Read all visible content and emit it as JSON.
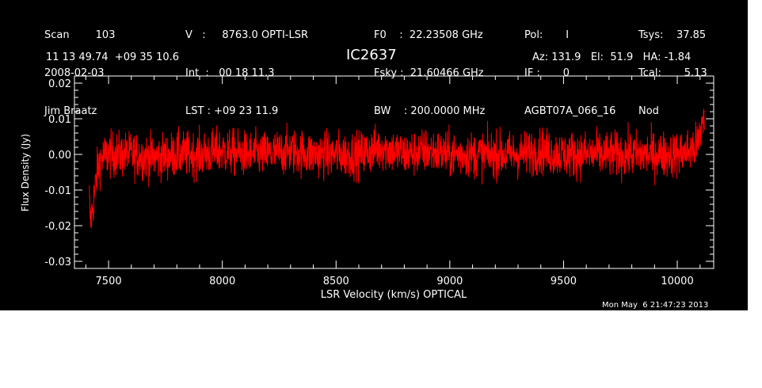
{
  "header": {
    "col1": [
      "Scan        103",
      "2008-02-03",
      "Jim Braatz"
    ],
    "col2": [
      "V   :     8763.0 OPTI-LSR",
      "Int  :   00 18 11.3",
      "LST : +09 23 11.9"
    ],
    "col3": [
      "F0    :  22.23508 GHz",
      "Fsky :  21.60466 GHz",
      "BW    : 200.0000 MHz"
    ],
    "col4": [
      "Pol:       I",
      "IF :       0",
      "AGBT07A_066_16"
    ],
    "col5": [
      "Tsys:    37.85",
      "Tcal:       5.13",
      "Nod"
    ]
  },
  "coords": "11 13 49.74  +09 35 10.6",
  "azel": "Az: 131.9   El:  51.9   HA: -1.84",
  "timestamp": "Mon May  6 21:47:23 2013",
  "chart_data": {
    "type": "line",
    "title": "IC2637",
    "xlabel": "LSR Velocity (km/s) OPTICAL",
    "ylabel": "Flux Density (Jy)",
    "xlim": [
      7350,
      10160
    ],
    "ylim": [
      -0.032,
      0.022
    ],
    "xticks": [
      7500,
      8000,
      8500,
      9000,
      9500,
      10000
    ],
    "yticks": [
      -0.03,
      -0.02,
      -0.01,
      0.0,
      0.01,
      0.02
    ],
    "ytick_labels": [
      "-0.03",
      "-0.02",
      "-0.01",
      "0.00",
      "0.01",
      "0.02"
    ],
    "series": [
      {
        "color": "#ff0000",
        "x": [
          7415,
          7420,
          7430,
          7440,
          7450,
          7460,
          7470,
          7500,
          7600,
          7700,
          7800,
          7900,
          8000,
          8100,
          8200,
          8300,
          8400,
          8500,
          8600,
          8700,
          8800,
          8900,
          9000,
          9100,
          9200,
          9300,
          9400,
          9500,
          9600,
          9700,
          9800,
          9900,
          10000,
          10050,
          10080,
          10100,
          10110,
          10120
        ],
        "y": [
          -0.012,
          -0.019,
          -0.015,
          -0.01,
          -0.005,
          -0.002,
          -0.001,
          0.0,
          0.0,
          -0.001,
          0.0,
          0.0,
          0.001,
          0.0,
          0.0,
          0.001,
          0.0,
          0.0,
          0.0,
          0.002,
          0.0,
          0.001,
          0.0,
          0.0,
          0.0,
          0.0,
          0.001,
          0.0,
          0.0,
          0.0,
          0.0,
          0.0,
          0.0,
          0.001,
          0.002,
          0.005,
          0.009,
          0.012
        ]
      }
    ]
  }
}
